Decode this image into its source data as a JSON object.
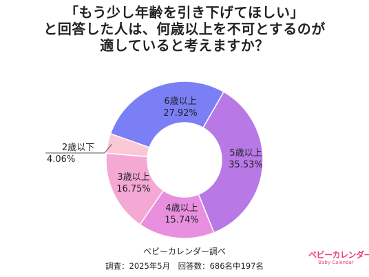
{
  "title_lines": [
    "「もう少し年齢を引き下げてほしい」",
    "と回答した人は、何歳以上を不可とするのが",
    "適していると考えますか？"
  ],
  "chart_data": {
    "type": "pie",
    "donut": true,
    "slices": [
      {
        "label": "5歳以上",
        "value": 35.53,
        "value_label": "35.53%",
        "color": "#b878e6"
      },
      {
        "label": "4歳以上",
        "value": 15.74,
        "value_label": "15.74%",
        "color": "#e88fe0"
      },
      {
        "label": "3歳以上",
        "value": 16.75,
        "value_label": "16.75%",
        "color": "#f4a8d4"
      },
      {
        "label": "2歳以下",
        "value": 4.06,
        "value_label": "4.06%",
        "color": "#f9c8d4"
      },
      {
        "label": "6歳以上",
        "value": 27.92,
        "value_label": "27.92%",
        "color": "#7b7ff5"
      }
    ]
  },
  "source": {
    "line1": "ベビーカレンダー調べ",
    "line2": "調査：2025年5月　回答数：686名中197名"
  },
  "logo": {
    "main": "ベビーカレンダー",
    "sub": "Baby Calendar"
  }
}
